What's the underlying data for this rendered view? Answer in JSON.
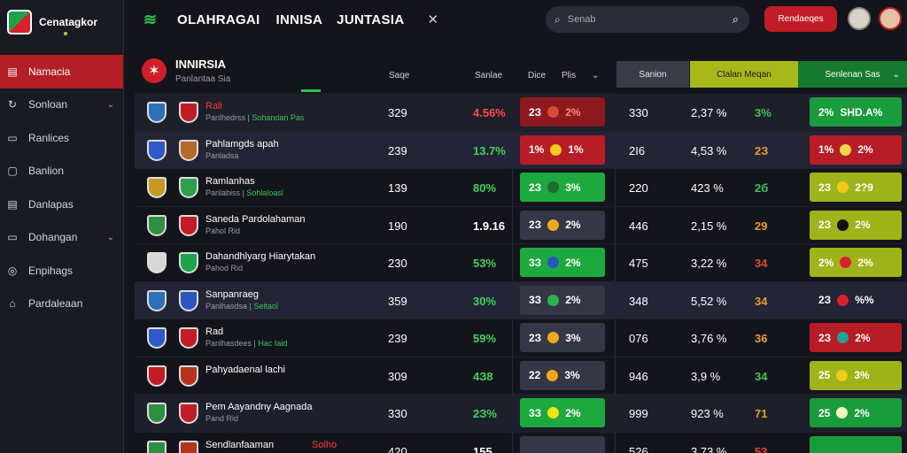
{
  "brand": {
    "name": "Cenatagkor"
  },
  "sidebar": {
    "items": [
      {
        "label": "Namacia",
        "icon": "grid-icon",
        "active": true,
        "chevron": false
      },
      {
        "label": "Sonloan",
        "icon": "refresh-icon",
        "active": false,
        "chevron": true
      },
      {
        "label": "Ranlices",
        "icon": "monitor-icon",
        "active": false,
        "chevron": false
      },
      {
        "label": "Banlion",
        "icon": "chart-icon",
        "active": false,
        "chevron": false
      },
      {
        "label": "Danlapas",
        "icon": "table-icon",
        "active": false,
        "chevron": false
      },
      {
        "label": "Dohangan",
        "icon": "screen-icon",
        "active": false,
        "chevron": true
      },
      {
        "label": "Enpihags",
        "icon": "compass-icon",
        "active": false,
        "chevron": false
      },
      {
        "label": "Pardaleaan",
        "icon": "trophy-icon",
        "active": false,
        "chevron": false
      }
    ]
  },
  "topbar": {
    "tabs": [
      "OLAHRAGAI",
      "INNISA",
      "JUNTASIA"
    ],
    "close": "✕",
    "search_placeholder": "Senab",
    "register_label": "Rendaeqes"
  },
  "league": {
    "title": "INNIRSIA",
    "subtitle": "Panlantaa Sia"
  },
  "columns": {
    "c1": "Saqe",
    "c2": "Sanlae",
    "c3": "Dice",
    "c4": "Plis",
    "grp_gray": "Sanion",
    "grp_olive": "Clalan Meqan",
    "grp_green": "Senlenan Sas"
  },
  "rows": [
    {
      "name": "Rali",
      "name_red": true,
      "sub": "Panlhedrss",
      "sub_green": "Sohandan Pas",
      "a": "329",
      "b": "4.56%",
      "b_color": "#ff4a4a",
      "box1": {
        "v": "2З",
        "dot": "#d84a3a",
        "p": "2%",
        "bg": "#8c1a1f",
        "pc": "#ff8c70"
      },
      "c": "330",
      "d": "2,37 %",
      "e": "3%",
      "e_color": "#3cc45a",
      "box2": {
        "v": "2%",
        "dot": "",
        "p": "SHD.A%",
        "bg": "#199c3c",
        "pc": "#fff"
      },
      "cr1": "#2d6fb8",
      "cr2": "#c21d27",
      "bg": "alt"
    },
    {
      "name": "Pahlamgds apah",
      "name_red": false,
      "sub": "Panladsa",
      "sub_green": "",
      "a": "239",
      "b": "13.7%",
      "b_color": "#3fd35c",
      "box1": {
        "v": "1%",
        "dot": "#f3c91a",
        "p": "1%",
        "bg": "#b71d26",
        "pc": "#fff"
      },
      "c": "2I6",
      "d": "4,53 %",
      "e": "2З",
      "e_color": "#e69b2a",
      "box2": {
        "v": "1%",
        "dot": "#f3d84a",
        "p": "2%",
        "bg": "#b71d26",
        "pc": "#fff"
      },
      "cr1": "#2e59c8",
      "cr2": "#b56a2a",
      "bg": "hl"
    },
    {
      "name": "Ramlanhas",
      "name_red": false,
      "sub": "Panlabiss",
      "sub_green": "Sohlaloasl",
      "a": "139",
      "b": "80%",
      "b_color": "#3fd35c",
      "box1": {
        "v": "2З",
        "dot": "#1e6b2e",
        "p": "3%",
        "bg": "#1ea93f",
        "pc": "#fff"
      },
      "c": "220",
      "d": "423 %",
      "e": "2б",
      "e_color": "#3cc45a",
      "box2": {
        "v": "2З",
        "dot": "#f3c91a",
        "p": "2?9",
        "bg": "#9fb31a",
        "pc": "#fff"
      },
      "cr1": "#c49a1f",
      "cr2": "#2aa14a",
      "bg": ""
    },
    {
      "name": "Saneda Pardolahaman",
      "name_red": false,
      "sub": "Pahol Rid",
      "sub_green": "",
      "a": "190",
      "b": "1.9.16",
      "b_color": "#fff",
      "box1": {
        "v": "2З",
        "dot": "#f0a81d",
        "p": "2%",
        "bg": "#343746",
        "pc": "#fff"
      },
      "c": "446",
      "d": "2,15 %",
      "e": "29",
      "e_color": "#e69b2a",
      "box2": {
        "v": "2З",
        "dot": "#111",
        "p": "2%",
        "bg": "#9fb31a",
        "pc": "#fff"
      },
      "cr1": "#2e8f3f",
      "cr2": "#c21d27",
      "bg": ""
    },
    {
      "name": "Dahandhlyarg Hiarytakan",
      "name_red": false,
      "sub": "Pahod Rid",
      "sub_green": "",
      "a": "230",
      "b": "53%",
      "b_color": "#3fd35c",
      "box1": {
        "v": "3З",
        "dot": "#2a56c0",
        "p": "2%",
        "bg": "#1ea93f",
        "pc": "#fff"
      },
      "c": "475",
      "d": "3,22 %",
      "e": "34",
      "e_color": "#e0453a",
      "box2": {
        "v": "2%",
        "dot": "#d8212b",
        "p": "2%",
        "bg": "#9fb31a",
        "pc": "#fff"
      },
      "cr1": "#d8d8d8",
      "cr2": "#1fa34a",
      "bg": ""
    },
    {
      "name": "Sanpanraeg",
      "name_red": false,
      "sub": "Panlhasdsa",
      "sub_green": "Seitaol",
      "a": "359",
      "b": "30%",
      "b_color": "#3fd35c",
      "box1": {
        "v": "3З",
        "dot": "#2ab54a",
        "p": "2%",
        "bg": "#343746",
        "pc": "#fff"
      },
      "c": "348",
      "d": "5,52 %",
      "e": "34",
      "e_color": "#e69b2a",
      "box2": {
        "v": "2З",
        "dot": "#d8212b",
        "p": "%%",
        "bg": "#232536",
        "pc": "#fff"
      },
      "cr1": "#2d6fb8",
      "cr2": "#2a56c0",
      "bg": "hl"
    },
    {
      "name": "Rad",
      "name_red": false,
      "sub": "Panlhasdees",
      "sub_green": "Нас Іаіd",
      "a": "239",
      "b": "59%",
      "b_color": "#3fd35c",
      "box1": {
        "v": "2З",
        "dot": "#f0a81d",
        "p": "3%",
        "bg": "#343746",
        "pc": "#fff"
      },
      "c": "076",
      "d": "3,76 %",
      "e": "36",
      "e_color": "#e69b2a",
      "box2": {
        "v": "2З",
        "dot": "#20a39b",
        "p": "2%",
        "bg": "#b71d26",
        "pc": "#fff"
      },
      "cr1": "#2e59c8",
      "cr2": "#c21d27",
      "bg": ""
    },
    {
      "name": "Pahyadaenal lachi",
      "name_red": false,
      "sub": "",
      "sub_green": "",
      "a": "309",
      "b": "4З8",
      "b_color": "#3fd35c",
      "box1": {
        "v": "22",
        "dot": "#f0a81d",
        "p": "3%",
        "bg": "#343746",
        "pc": "#fff"
      },
      "c": "946",
      "d": "3,9 %",
      "e": "34",
      "e_color": "#3cc45a",
      "box2": {
        "v": "25",
        "dot": "#f3c91a",
        "p": "3%",
        "bg": "#9fb31a",
        "pc": "#fff"
      },
      "cr1": "#c21d27",
      "cr2": "#b5321f",
      "bg": ""
    },
    {
      "name": "Pem Aayandny Aagnada",
      "name_red": false,
      "sub": "Pand Rid",
      "sub_green": "",
      "a": "330",
      "b": "2З%",
      "b_color": "#3fd35c",
      "box1": {
        "v": "3З",
        "dot": "#f3e21a",
        "p": "2%",
        "bg": "#1ea93f",
        "pc": "#fff"
      },
      "c": "999",
      "d": "923 %",
      "e": "71",
      "e_color": "#e69b2a",
      "box2": {
        "v": "25",
        "dot": "#f3f0c4",
        "p": "2%",
        "bg": "#199c3c",
        "pc": "#fff"
      },
      "cr1": "#2e8f3f",
      "cr2": "#c21d27",
      "bg": "alt"
    },
    {
      "name": "Sendlanfaaman",
      "name_red": false,
      "sub": "",
      "sub_green": "",
      "extra_red": "Solho",
      "a": "420",
      "b": "155",
      "b_color": "#fff",
      "box1": {
        "v": "",
        "dot": "",
        "p": "",
        "bg": "#343746",
        "pc": "#fff"
      },
      "c": "526",
      "d": "3,73 %",
      "e": "53",
      "e_color": "#e0453a",
      "box2": {
        "v": "",
        "dot": "",
        "p": "",
        "bg": "#199c3c",
        "pc": "#fff"
      },
      "cr1": "#2e8f3f",
      "cr2": "#b5321f",
      "bg": ""
    }
  ]
}
